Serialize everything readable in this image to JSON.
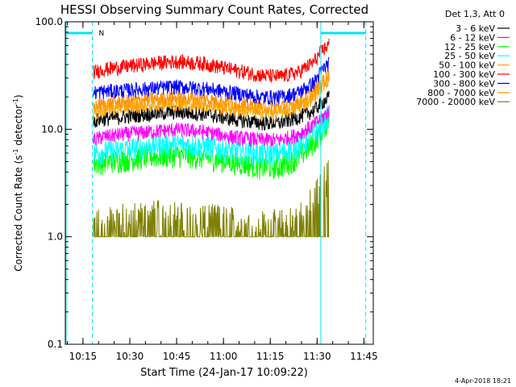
{
  "chart_data": {
    "type": "line",
    "title": "HESSI Observing Summary Count Rates, Corrected",
    "xlabel": "Start Time (24-Jan-17 10:09:22)",
    "ylabel_main": "Corrected Count Rate (s",
    "ylabel_sup": "-1",
    "ylabel_rest": " detector",
    "ylabel_end": ")",
    "yscale": "log",
    "ylim": [
      0.1,
      100
    ],
    "xlim": [
      10.1558,
      11.8
    ],
    "y_ticks": [
      {
        "value": 0.1,
        "label": "0.1"
      },
      {
        "value": 1,
        "label": "1.0"
      },
      {
        "value": 10,
        "label": "10.0"
      },
      {
        "value": 100,
        "label": "100.0"
      }
    ],
    "x_ticks": [
      {
        "value": 10.25,
        "label": "10:15"
      },
      {
        "value": 10.5,
        "label": "10:30"
      },
      {
        "value": 10.75,
        "label": "10:45"
      },
      {
        "value": 11.0,
        "label": "11:00"
      },
      {
        "value": 11.25,
        "label": "11:15"
      },
      {
        "value": 11.5,
        "label": "11:30"
      },
      {
        "value": 11.75,
        "label": "11:45"
      }
    ],
    "legend_title": "Det 1,3, Att 0",
    "legend_position": "top-right",
    "data_start": 10.305,
    "data_end": 11.566,
    "x": [
      10.305,
      10.35,
      10.45,
      10.6,
      10.75,
      10.9,
      11.05,
      11.2,
      11.3,
      11.4,
      11.48,
      11.53,
      11.566
    ],
    "series": [
      {
        "name": "3 - 6 keV",
        "color": "#000000",
        "values": [
          12,
          12.5,
          13,
          14,
          14.5,
          14,
          12.5,
          11.5,
          11.5,
          13,
          15,
          18,
          20
        ]
      },
      {
        "name": "6 - 12 keV",
        "color": "#ff00ff",
        "values": [
          8,
          8.5,
          9,
          9.5,
          10,
          9.5,
          8.5,
          8,
          8,
          9,
          11,
          13,
          15
        ]
      },
      {
        "name": "12 - 25 keV",
        "color": "#00ff00",
        "values": [
          4.8,
          5,
          5.2,
          5.6,
          5.8,
          5.5,
          5,
          4.5,
          4.5,
          5.5,
          7.5,
          10,
          13
        ]
      },
      {
        "name": "25 - 50 keV",
        "color": "#00ffff",
        "values": [
          6,
          6.2,
          6.5,
          7,
          7.3,
          7,
          6.3,
          6,
          6,
          7,
          9,
          11.5,
          14
        ]
      },
      {
        "name": "50 - 100 keV",
        "color": "#ffa500",
        "values": [
          14,
          15,
          16,
          17,
          17.5,
          17,
          15.5,
          14.5,
          14.5,
          16,
          20,
          26,
          30
        ]
      },
      {
        "name": "100 - 300 keV",
        "color": "#ff0000",
        "values": [
          34,
          36,
          38,
          41,
          43,
          41,
          36,
          32,
          31,
          34,
          42,
          55,
          62
        ]
      },
      {
        "name": "300 - 800 keV",
        "color": "#0000ff",
        "values": [
          22,
          22.5,
          23,
          24,
          25,
          24,
          22,
          20,
          20,
          22,
          27,
          36,
          42
        ]
      },
      {
        "name": "800 - 7000 keV",
        "color": "#ff8c00",
        "values": [
          16,
          17,
          18,
          19,
          19.5,
          19,
          17.5,
          16,
          16,
          18,
          22,
          28,
          33
        ]
      },
      {
        "name": "7000 - 20000 keV",
        "color": "#808000",
        "values": [
          1.3,
          1.4,
          1.5,
          1.6,
          1.6,
          1.5,
          1.4,
          1.3,
          1.3,
          1.5,
          2.2,
          3.2,
          4
        ]
      }
    ],
    "night_intervals": [
      {
        "start": 10.1558,
        "end": 10.3
      },
      {
        "start": 11.52,
        "end": 11.76
      }
    ],
    "n_flag": {
      "label": "N",
      "x": 10.3
    }
  },
  "footer": {
    "timestamp": "4-Apr-2018 18:21"
  }
}
